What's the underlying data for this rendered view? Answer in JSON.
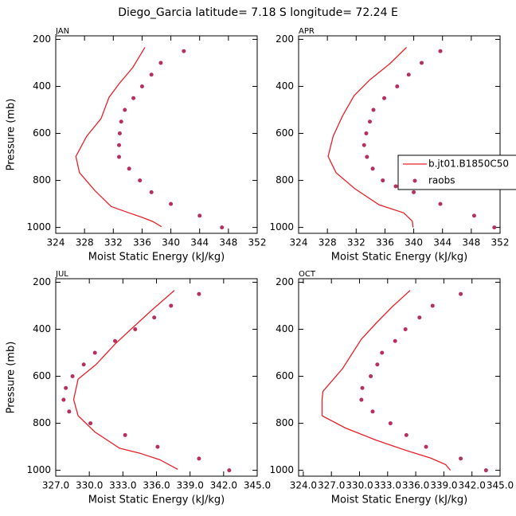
{
  "title": "Diego_Garcia   latitude= 7.18 S longitude= 72.24 E",
  "chart_data": [
    {
      "type": "line",
      "panel_label": "JAN",
      "xlabel": "Moist Static Energy (kJ/kg)",
      "ylabel": "Pressure (mb)",
      "xlim": [
        324,
        352
      ],
      "xticks": [
        324,
        328,
        332,
        336,
        340,
        344,
        348,
        352
      ],
      "ylim": [
        1025,
        185
      ],
      "yticks": [
        200,
        400,
        600,
        800,
        1000
      ],
      "series": [
        {
          "color": "#e8202a",
          "mode": "lines",
          "x": [
            336.4,
            334.7,
            332.8,
            331.4,
            330.3,
            328.3,
            326.8,
            327.3,
            329.4,
            331.7,
            333.9,
            335.9,
            337.5,
            338.7
          ],
          "y": [
            234,
            320,
            389,
            447,
            537,
            612,
            698,
            767,
            842,
            911,
            935,
            956,
            975,
            997
          ]
        },
        {
          "color": "#b5305a",
          "mode": "markers",
          "x": [
            341.8,
            338.6,
            337.3,
            336.0,
            334.8,
            333.6,
            333.1,
            332.9,
            332.8,
            332.8,
            334.2,
            335.7,
            337.3,
            340.0,
            344.0,
            347.1
          ],
          "y": [
            250,
            300,
            350,
            400,
            450,
            500,
            550,
            600,
            650,
            700,
            750,
            800,
            850,
            900,
            950,
            1000
          ]
        }
      ]
    },
    {
      "type": "line",
      "panel_label": "APR",
      "xlabel": "Moist Static Energy (kJ/kg)",
      "xlim": [
        324,
        352
      ],
      "xticks": [
        324,
        328,
        332,
        336,
        340,
        344,
        348,
        352
      ],
      "ylim": [
        1025,
        185
      ],
      "yticks": [
        200,
        400,
        600,
        800,
        1000
      ],
      "legend": true,
      "series": [
        {
          "name": "b.jt01.B1850C50",
          "color": "#e8202a",
          "mode": "lines",
          "x": [
            339.0,
            336.7,
            333.9,
            331.7,
            330.1,
            328.8,
            328.1,
            329.2,
            331.8,
            335.2,
            338.6,
            339.8,
            339.9
          ],
          "y": [
            234,
            303,
            372,
            440,
            526,
            612,
            698,
            767,
            835,
            904,
            938,
            973,
            1000
          ]
        },
        {
          "name": "raobs",
          "color": "#b5305a",
          "mode": "markers",
          "x": [
            343.7,
            341.1,
            339.3,
            337.7,
            335.9,
            334.4,
            333.9,
            333.4,
            333.1,
            333.5,
            334.3,
            335.7,
            337.5,
            340.0,
            343.7,
            348.4,
            351.2
          ],
          "y": [
            250,
            300,
            350,
            400,
            450,
            500,
            550,
            600,
            650,
            700,
            750,
            800,
            825,
            850,
            900,
            950,
            1000
          ]
        }
      ]
    },
    {
      "type": "line",
      "panel_label": "JUL",
      "xlabel": "Moist Static Energy (kJ/kg)",
      "ylabel": "Pressure (mb)",
      "xlim": [
        327,
        345
      ],
      "xticks": [
        {
          "value": 327,
          "label": "327.0"
        },
        {
          "value": 330,
          "label": "330.0"
        },
        {
          "value": 333,
          "label": "333.0"
        },
        {
          "value": 336,
          "label": "336.0"
        },
        {
          "value": 339,
          "label": "339.0"
        },
        {
          "value": 342,
          "label": "342.0"
        },
        {
          "value": 345,
          "label": "345.0"
        }
      ],
      "ylim": [
        1025,
        185
      ],
      "yticks": [
        200,
        400,
        600,
        800,
        1000
      ],
      "series": [
        {
          "color": "#e8202a",
          "mode": "lines",
          "x": [
            337.6,
            335.6,
            333.7,
            332.3,
            330.6,
            329.0,
            328.6,
            329.0,
            330.5,
            332.7,
            334.5,
            336.3,
            337.9
          ],
          "y": [
            235,
            318,
            401,
            463,
            550,
            612,
            699,
            768,
            837,
            906,
            927,
            955,
            996
          ]
        },
        {
          "color": "#b5305a",
          "mode": "markers",
          "x": [
            339.8,
            337.3,
            335.8,
            334.1,
            332.3,
            330.5,
            329.5,
            328.5,
            327.9,
            327.7,
            328.2,
            330.1,
            333.2,
            336.1,
            339.8,
            342.5
          ],
          "y": [
            250,
            300,
            350,
            400,
            450,
            500,
            550,
            600,
            650,
            700,
            750,
            800,
            850,
            900,
            950,
            1000
          ]
        }
      ]
    },
    {
      "type": "line",
      "panel_label": "OCT",
      "xlabel": "Moist Static Energy (kJ/kg)",
      "xlim": [
        323.5,
        345
      ],
      "xticks": [
        {
          "value": 324,
          "label": "324.0"
        },
        {
          "value": 327,
          "label": "327.0"
        },
        {
          "value": 330,
          "label": "330.0"
        },
        {
          "value": 333,
          "label": "333.0"
        },
        {
          "value": 336,
          "label": "336.0"
        },
        {
          "value": 339,
          "label": "339.0"
        },
        {
          "value": 342,
          "label": "342.0"
        },
        {
          "value": 345,
          "label": "345.0"
        }
      ],
      "ylim": [
        1025,
        185
      ],
      "yticks": [
        200,
        400,
        600,
        800,
        1000
      ],
      "series": [
        {
          "color": "#e8202a",
          "mode": "lines",
          "x": [
            335.4,
            333.5,
            331.8,
            330.2,
            328.2,
            326.1,
            326.0,
            326.0,
            328.5,
            331.8,
            335.1,
            337.6,
            339.2,
            339.7
          ],
          "y": [
            235,
            304,
            373,
            442,
            567,
            664,
            699,
            768,
            820,
            872,
            917,
            948,
            976,
            1000
          ]
        },
        {
          "color": "#b5305a",
          "mode": "markers",
          "x": [
            340.8,
            337.8,
            336.4,
            334.9,
            333.8,
            332.4,
            331.9,
            331.2,
            330.3,
            330.2,
            331.4,
            333.3,
            335.0,
            337.1,
            340.8,
            343.5
          ],
          "y": [
            250,
            300,
            350,
            400,
            450,
            500,
            550,
            600,
            650,
            700,
            750,
            800,
            850,
            900,
            950,
            1000
          ]
        }
      ]
    }
  ]
}
